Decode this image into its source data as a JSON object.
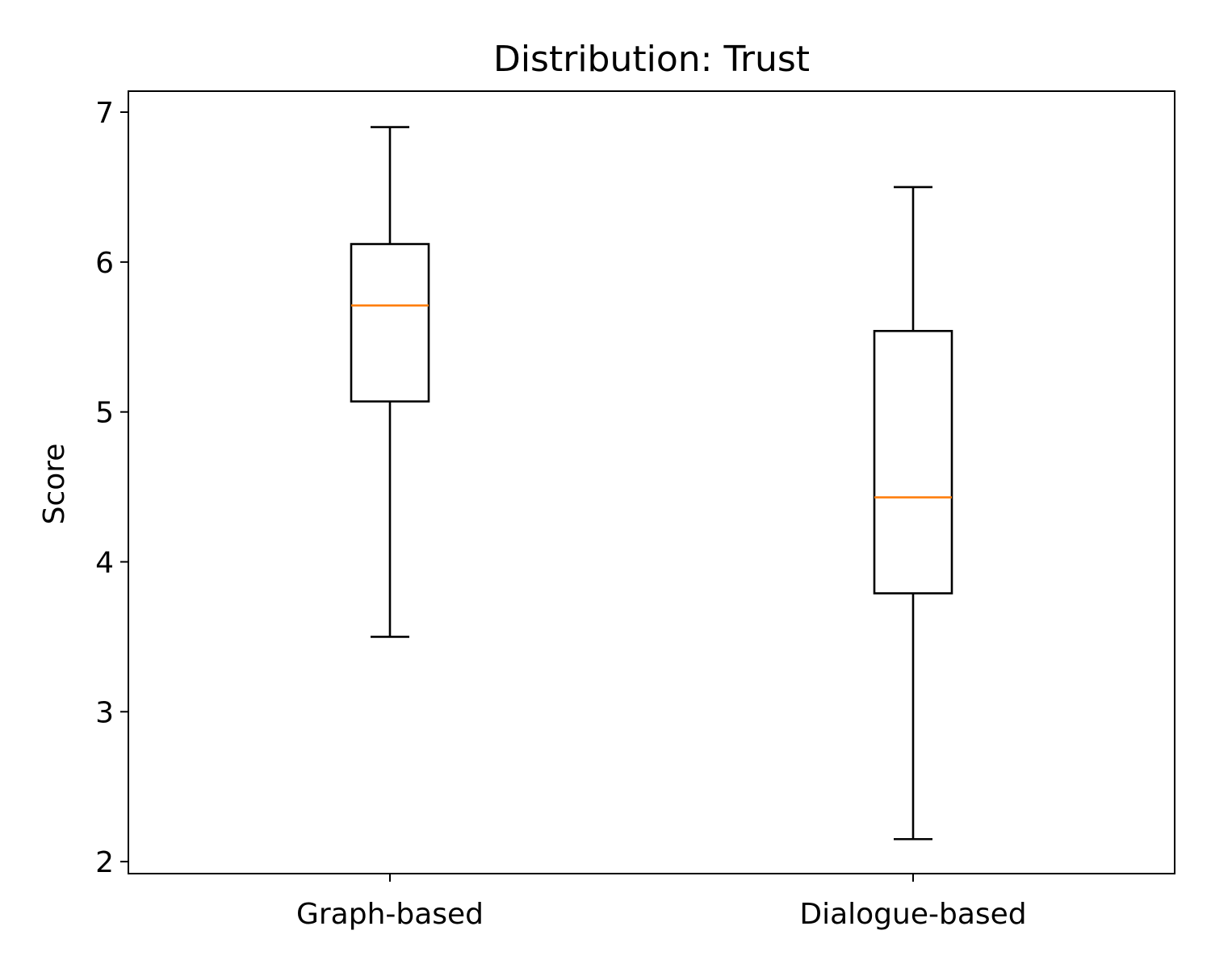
{
  "chart_data": {
    "type": "box",
    "title": "Distribution: Trust",
    "xlabel": "",
    "ylabel": "Score",
    "ylim": [
      1.92,
      7.14
    ],
    "yticks": [
      2,
      3,
      4,
      5,
      6,
      7
    ],
    "grid": false,
    "legend": "none",
    "categories": [
      "Graph-based",
      "Dialogue-based"
    ],
    "boxes": [
      {
        "whisker_low": 3.5,
        "q1": 5.07,
        "median": 5.71,
        "q3": 6.12,
        "whisker_high": 6.9
      },
      {
        "whisker_low": 2.15,
        "q1": 3.79,
        "median": 4.43,
        "q3": 5.54,
        "whisker_high": 6.5
      }
    ],
    "colors": {
      "box": "#000000",
      "whisker": "#000000",
      "median": "#ff7f0e",
      "axes": "#000000",
      "background": "#ffffff"
    }
  }
}
